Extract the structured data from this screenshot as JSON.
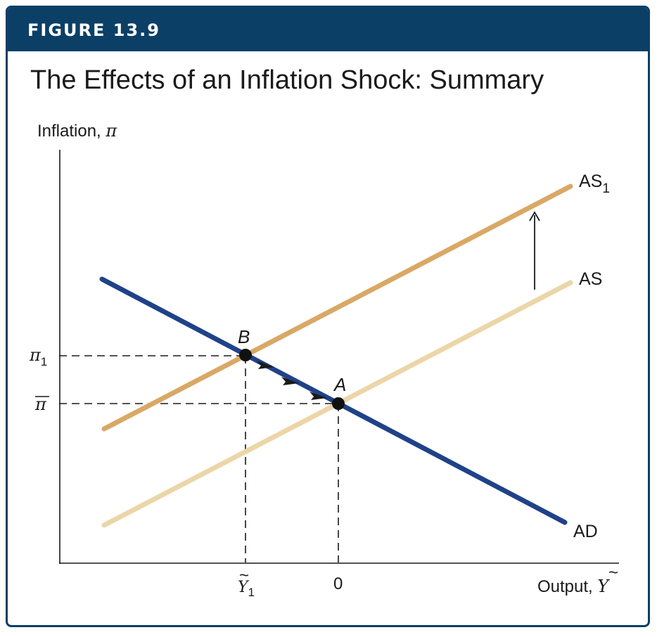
{
  "figure": {
    "label": "FIGURE 13.9",
    "title": "The Effects of an Inflation Shock: Summary"
  },
  "axes": {
    "y_label_text": "Inflation, ",
    "y_label_symbol": "π",
    "x_label_text": "Output, ",
    "x_label_symbol": "Y",
    "x_label_accent": "~"
  },
  "ticks": {
    "y": [
      {
        "symbol": "π",
        "subscript": "1"
      },
      {
        "symbol": "π",
        "overline": true
      }
    ],
    "x": [
      {
        "symbol": "Y",
        "subscript": "1",
        "accent": "~"
      },
      {
        "text": "0"
      }
    ]
  },
  "curves": {
    "as1": {
      "name": "AS",
      "subscript": "1",
      "color": "#d9a866"
    },
    "as": {
      "name": "AS",
      "color": "#ecd6a8"
    },
    "ad": {
      "name": "AD",
      "color": "#1f4288"
    }
  },
  "points": {
    "b": {
      "label": "B"
    },
    "a": {
      "label": "A"
    }
  },
  "colors": {
    "banner": "#0b3f66",
    "border": "#0b3f66",
    "text": "#1a1a1a"
  },
  "icons": [
    "up-arrow-icon",
    "chevron-arrowhead-icon"
  ]
}
